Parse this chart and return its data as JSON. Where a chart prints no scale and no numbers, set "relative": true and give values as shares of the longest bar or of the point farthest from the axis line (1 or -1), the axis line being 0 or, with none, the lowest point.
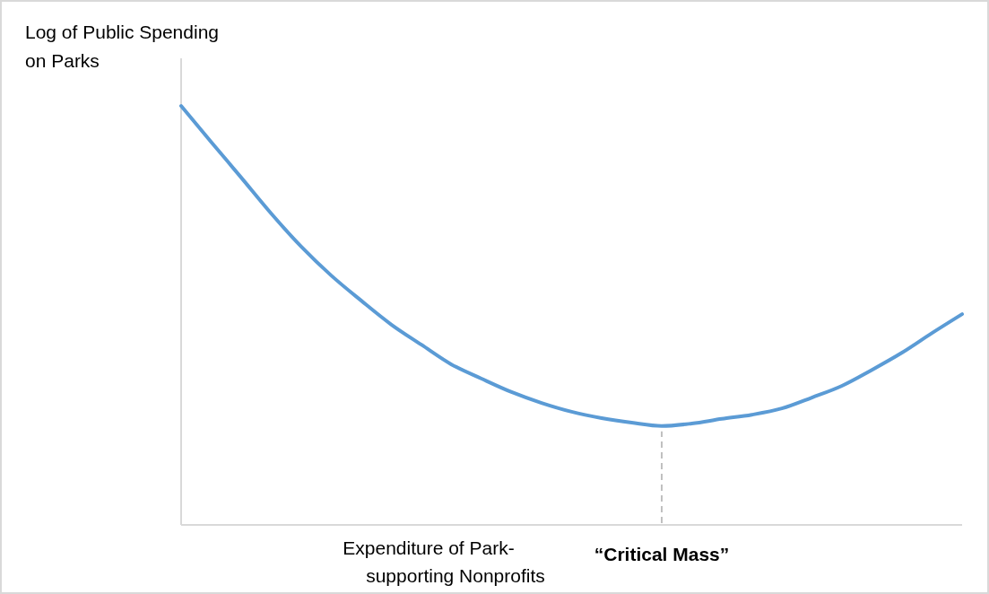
{
  "chart_data": {
    "type": "line",
    "relative": true,
    "ylabel": "Log of Public Spending on Parks",
    "xlabel": "Expenditure of Park-supporting Nonprofits",
    "categories": [
      null,
      null,
      null,
      null,
      null,
      null,
      null,
      null,
      null,
      null,
      null,
      null,
      null,
      null,
      null,
      null,
      null,
      null,
      null,
      null,
      null,
      null,
      null,
      null,
      null,
      null,
      null
    ],
    "series": [
      {
        "color": "#5b9bd5",
        "values": [
          1.0,
          0.914,
          0.829,
          0.743,
          0.664,
          0.595,
          0.535,
          0.478,
          0.43,
          0.383,
          0.349,
          0.317,
          0.291,
          0.27,
          0.255,
          0.244,
          0.236,
          0.242,
          0.253,
          0.263,
          0.278,
          0.304,
          0.332,
          0.37,
          0.411,
          0.458,
          0.503
        ]
      }
    ],
    "annotations": [
      "“Critical Mass”"
    ],
    "marker": "none",
    "line_style": "solid"
  }
}
